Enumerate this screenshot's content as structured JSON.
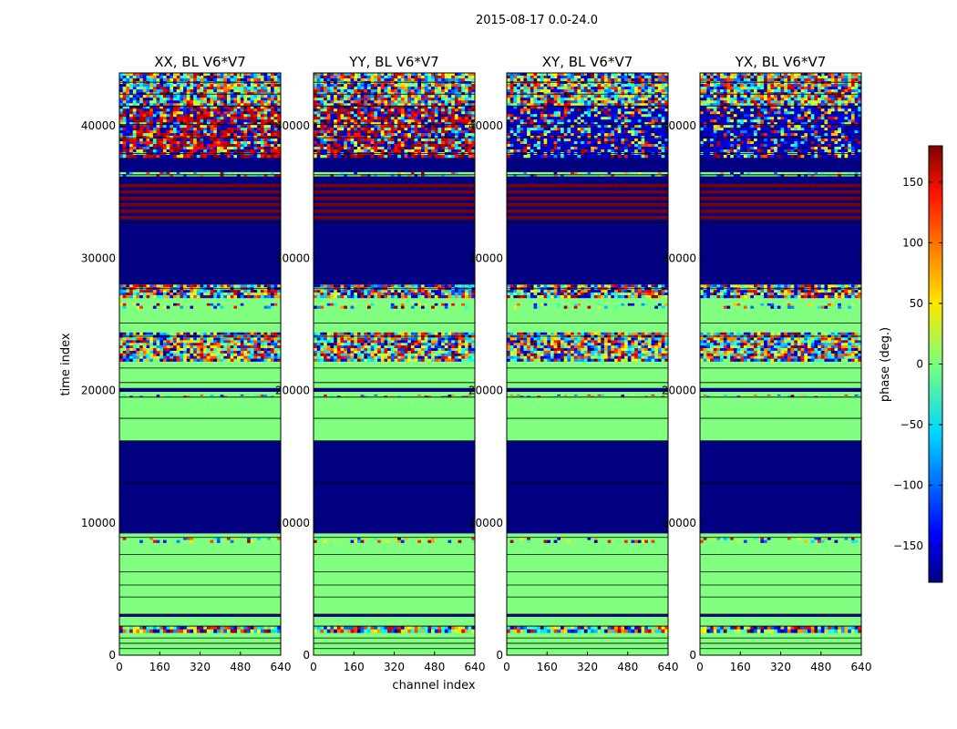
{
  "chart_data": {
    "type": "heatmap",
    "suptitle": "2015-08-17 0.0-24.0",
    "xlabel": "channel index",
    "ylabel": "time index",
    "xlim": [
      0,
      640
    ],
    "ylim": [
      0,
      44000
    ],
    "x_ticks": [
      0,
      160,
      320,
      480,
      640
    ],
    "y_ticks": [
      0,
      10000,
      20000,
      30000,
      40000
    ],
    "panels": [
      {
        "title": "XX, BL V6*V7"
      },
      {
        "title": "YY, BL V6*V7"
      },
      {
        "title": "XY, BL V6*V7"
      },
      {
        "title": "YX, BL V6*V7"
      }
    ],
    "colorbar": {
      "label": "phase (deg.)",
      "range": [
        -180,
        180
      ],
      "ticks": [
        -150,
        -100,
        -50,
        0,
        50,
        100,
        150
      ],
      "tick_labels": [
        "−150",
        "−100",
        "−50",
        "0",
        "50",
        "100",
        "150"
      ],
      "colormap": "jet"
    },
    "bands": [
      {
        "y0": 0,
        "y1": 1700,
        "kind": "zero"
      },
      {
        "y0": 1700,
        "y1": 2200,
        "kind": "noise"
      },
      {
        "y0": 2200,
        "y1": 2900,
        "kind": "zero"
      },
      {
        "y0": 2900,
        "y1": 3100,
        "kind": "flag"
      },
      {
        "y0": 3100,
        "y1": 8500,
        "kind": "zero"
      },
      {
        "y0": 8500,
        "y1": 8900,
        "kind": "sparse"
      },
      {
        "y0": 8900,
        "y1": 9200,
        "kind": "zero"
      },
      {
        "y0": 9200,
        "y1": 16200,
        "kind": "flag"
      },
      {
        "y0": 16200,
        "y1": 19500,
        "kind": "zero"
      },
      {
        "y0": 19500,
        "y1": 19700,
        "kind": "sparse"
      },
      {
        "y0": 19700,
        "y1": 19900,
        "kind": "zero"
      },
      {
        "y0": 19900,
        "y1": 20200,
        "kind": "flag"
      },
      {
        "y0": 20200,
        "y1": 22200,
        "kind": "zero"
      },
      {
        "y0": 22200,
        "y1": 24400,
        "kind": "noise"
      },
      {
        "y0": 24400,
        "y1": 26200,
        "kind": "zero"
      },
      {
        "y0": 26200,
        "y1": 26600,
        "kind": "sparse"
      },
      {
        "y0": 26600,
        "y1": 27000,
        "kind": "zero"
      },
      {
        "y0": 27000,
        "y1": 28000,
        "kind": "noise"
      },
      {
        "y0": 28000,
        "y1": 32700,
        "kind": "flag"
      },
      {
        "y0": 32700,
        "y1": 35600,
        "kind": "stripes"
      },
      {
        "y0": 35600,
        "y1": 36200,
        "kind": "flag"
      },
      {
        "y0": 36200,
        "y1": 36500,
        "kind": "sparse"
      },
      {
        "y0": 36500,
        "y1": 37600,
        "kind": "flag"
      },
      {
        "y0": 37600,
        "y1": 41500,
        "kind": "mixed"
      },
      {
        "y0": 41500,
        "y1": 44000,
        "kind": "noise"
      }
    ],
    "separators": [
      500,
      900,
      1300,
      2200,
      3100,
      4400,
      5300,
      6300,
      7600,
      8900,
      13000,
      16200,
      17900,
      19500,
      20600,
      21700,
      24100,
      25100,
      27700,
      32700,
      36300,
      37900,
      39100,
      40100,
      41500,
      42400,
      43300
    ]
  }
}
